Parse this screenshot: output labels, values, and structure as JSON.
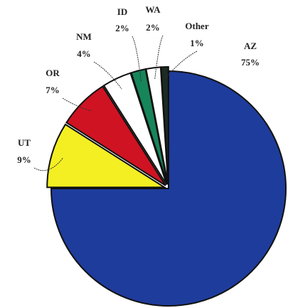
{
  "chart_data": {
    "type": "pie",
    "categories": [
      "AZ",
      "UT",
      "OR",
      "NM",
      "ID",
      "WA",
      "Other"
    ],
    "values": [
      75,
      9,
      7,
      4,
      2,
      2,
      1
    ],
    "value_labels": [
      "75%",
      "9%",
      "7%",
      "4%",
      "2%",
      "2%",
      "1%"
    ],
    "colors": [
      "#1e3c9c",
      "#f4ef22",
      "#cf1322",
      "#ffffff",
      "#17855a",
      "#ffffff",
      "#1c2b22"
    ]
  }
}
